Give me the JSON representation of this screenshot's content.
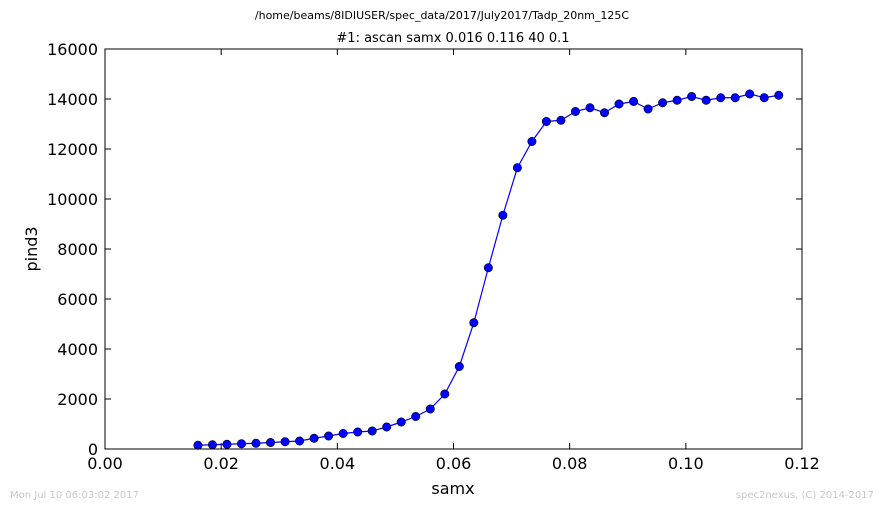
{
  "header": {
    "filepath": "/home/beams/8IDIUSER/spec_data/2017/July2017/Tadp_20nm_125C"
  },
  "footer": {
    "timestamp": "Mon Jul 10 06:03:02 2017",
    "credit": "spec2nexus, (C) 2014-2017"
  },
  "chart_data": {
    "type": "line",
    "title": "#1: ascan  samx 0.016 0.116  40 0.1",
    "xlabel": "samx",
    "ylabel": "pind3",
    "xlim": [
      0.0,
      0.12
    ],
    "ylim": [
      0,
      16000
    ],
    "x_ticks": [
      0.0,
      0.02,
      0.04,
      0.06,
      0.08,
      0.1,
      0.12
    ],
    "x_tick_labels": [
      "0.00",
      "0.02",
      "0.04",
      "0.06",
      "0.08",
      "0.10",
      "0.12"
    ],
    "y_ticks": [
      0,
      2000,
      4000,
      6000,
      8000,
      10000,
      12000,
      14000,
      16000
    ],
    "y_tick_labels": [
      "0",
      "2000",
      "4000",
      "6000",
      "8000",
      "10000",
      "12000",
      "14000",
      "16000"
    ],
    "grid": false,
    "line_color": "#0000ff",
    "marker_color": "#0000ff",
    "marker_edge_color": "#000000",
    "series": [
      {
        "x": [
          0.016,
          0.0185,
          0.021,
          0.0235,
          0.026,
          0.0285,
          0.031,
          0.0335,
          0.036,
          0.0385,
          0.041,
          0.0435,
          0.046,
          0.0485,
          0.051,
          0.0535,
          0.056,
          0.0585,
          0.061,
          0.0635,
          0.066,
          0.0685,
          0.071,
          0.0735,
          0.076,
          0.0785,
          0.081,
          0.0835,
          0.086,
          0.0885,
          0.091,
          0.0935,
          0.096,
          0.0985,
          0.101,
          0.1035,
          0.106,
          0.1085,
          0.111,
          0.1135,
          0.116
        ],
        "y": [
          150,
          170,
          190,
          210,
          230,
          260,
          290,
          320,
          430,
          520,
          620,
          680,
          720,
          880,
          1080,
          1300,
          1600,
          2200,
          3300,
          5050,
          7250,
          9350,
          11250,
          12300,
          13100,
          13150,
          13500,
          13650,
          13450,
          13800,
          13900,
          13600,
          13850,
          13950,
          14100,
          13950,
          14050,
          14050,
          14200,
          14050,
          14150
        ]
      }
    ]
  }
}
